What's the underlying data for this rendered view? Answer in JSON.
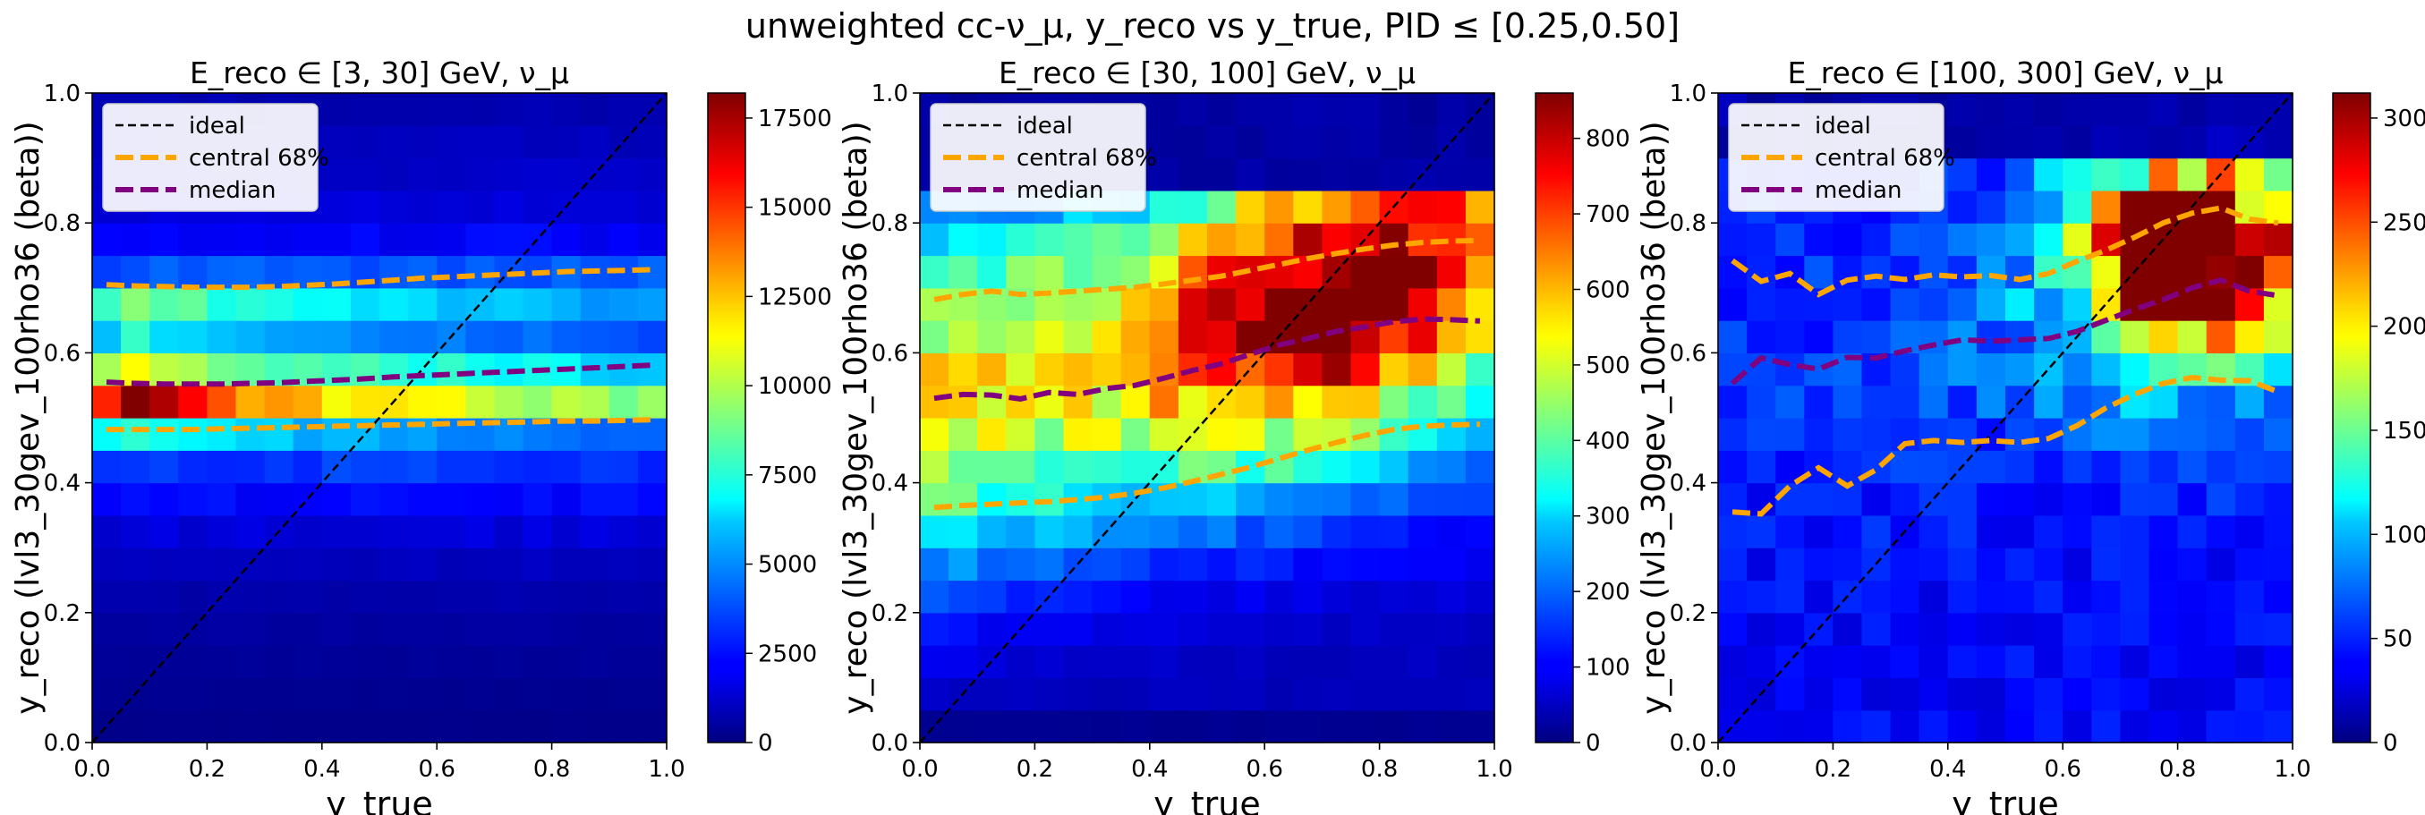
{
  "figure": {
    "suptitle": "unweighted cc-ν_μ, y_reco vs  y_true, PID ≤ [0.25,0.50]"
  },
  "chart_data": [
    {
      "type": "heatmap",
      "title": "E_reco ∈ [3, 30] GeV, ν_μ",
      "xlabel": "y_true",
      "ylabel": "y_reco (lvl3_30gev_100rho36 (beta))",
      "xlim": [
        0,
        1
      ],
      "ylim": [
        0,
        1
      ],
      "xticks": [
        "0.0",
        "0.2",
        "0.4",
        "0.6",
        "0.8",
        "1.0"
      ],
      "yticks": [
        "0.0",
        "0.2",
        "0.4",
        "0.6",
        "0.8",
        "1.0"
      ],
      "colorbar": {
        "min": 0,
        "max": 18200,
        "ticks": [
          0,
          2500,
          5000,
          7500,
          10000,
          12500,
          15000,
          17500
        ]
      },
      "legend": {
        "position": "top-left",
        "entries": [
          "ideal",
          "central 68%",
          "median"
        ]
      },
      "row_profile": [
        200,
        300,
        450,
        600,
        800,
        1100,
        1600,
        2300,
        3200,
        6500,
        14500,
        9500,
        5800,
        7800,
        3800,
        2200,
        1600,
        1300,
        1100,
        900
      ],
      "col_scale_top": [
        1.0,
        1.25,
        1.15,
        1.05,
        0.97,
        0.93,
        0.89,
        0.86,
        0.84,
        0.82,
        0.8,
        0.78,
        0.76,
        0.74,
        0.72,
        0.7,
        0.68,
        0.66,
        0.64,
        0.62
      ],
      "median": {
        "x": [
          0.025,
          0.075,
          0.125,
          0.175,
          0.225,
          0.275,
          0.325,
          0.375,
          0.425,
          0.475,
          0.525,
          0.575,
          0.625,
          0.675,
          0.725,
          0.775,
          0.825,
          0.875,
          0.925,
          0.975
        ],
        "y": [
          0.555,
          0.553,
          0.552,
          0.552,
          0.552,
          0.553,
          0.554,
          0.556,
          0.558,
          0.56,
          0.563,
          0.565,
          0.567,
          0.569,
          0.571,
          0.573,
          0.575,
          0.577,
          0.579,
          0.581
        ]
      },
      "central68_upper": {
        "y": [
          0.705,
          0.703,
          0.702,
          0.701,
          0.701,
          0.701,
          0.702,
          0.704,
          0.706,
          0.709,
          0.712,
          0.715,
          0.717,
          0.719,
          0.721,
          0.723,
          0.725,
          0.726,
          0.727,
          0.728
        ]
      },
      "central68_lower": {
        "y": [
          0.482,
          0.482,
          0.482,
          0.482,
          0.483,
          0.484,
          0.485,
          0.486,
          0.487,
          0.488,
          0.489,
          0.49,
          0.491,
          0.492,
          0.493,
          0.494,
          0.495,
          0.495,
          0.496,
          0.497
        ]
      }
    },
    {
      "type": "heatmap",
      "title": "E_reco ∈ [30, 100] GeV, ν_μ",
      "xlabel": "y_true",
      "ylabel": "y_reco (lvl3_30gev_100rho36 (beta))",
      "xlim": [
        0,
        1
      ],
      "ylim": [
        0,
        1
      ],
      "xticks": [
        "0.0",
        "0.2",
        "0.4",
        "0.6",
        "0.8",
        "1.0"
      ],
      "yticks": [
        "0.0",
        "0.2",
        "0.4",
        "0.6",
        "0.8",
        "1.0"
      ],
      "colorbar": {
        "min": 0,
        "max": 860,
        "ticks": [
          0,
          100,
          200,
          300,
          400,
          500,
          600,
          700,
          800
        ]
      },
      "legend": {
        "position": "top-left",
        "entries": [
          "ideal",
          "central 68%",
          "median"
        ]
      },
      "median": {
        "x": [
          0.025,
          0.075,
          0.125,
          0.175,
          0.225,
          0.275,
          0.325,
          0.375,
          0.425,
          0.475,
          0.525,
          0.575,
          0.625,
          0.675,
          0.725,
          0.775,
          0.825,
          0.875,
          0.925,
          0.975
        ],
        "y": [
          0.53,
          0.536,
          0.535,
          0.529,
          0.539,
          0.536,
          0.545,
          0.55,
          0.561,
          0.573,
          0.583,
          0.598,
          0.612,
          0.622,
          0.633,
          0.64,
          0.648,
          0.652,
          0.651,
          0.649
        ]
      },
      "central68_upper": {
        "y": [
          0.682,
          0.69,
          0.695,
          0.69,
          0.692,
          0.695,
          0.698,
          0.701,
          0.706,
          0.712,
          0.718,
          0.727,
          0.736,
          0.745,
          0.753,
          0.76,
          0.766,
          0.77,
          0.772,
          0.773
        ]
      },
      "central68_lower": {
        "y": [
          0.362,
          0.365,
          0.367,
          0.369,
          0.371,
          0.374,
          0.378,
          0.384,
          0.392,
          0.402,
          0.413,
          0.424,
          0.437,
          0.45,
          0.462,
          0.473,
          0.482,
          0.487,
          0.489,
          0.49
        ]
      }
    },
    {
      "type": "heatmap",
      "title": "E_reco ∈ [100, 300] GeV, ν_μ",
      "xlabel": "y_true",
      "ylabel": "y_reco (lvl3_30gev_100rho36 (beta))",
      "xlim": [
        0,
        1
      ],
      "ylim": [
        0,
        1
      ],
      "xticks": [
        "0.0",
        "0.2",
        "0.4",
        "0.6",
        "0.8",
        "1.0"
      ],
      "yticks": [
        "0.0",
        "0.2",
        "0.4",
        "0.6",
        "0.8",
        "1.0"
      ],
      "colorbar": {
        "min": 0,
        "max": 312,
        "ticks": [
          0,
          50,
          100,
          150,
          200,
          250,
          300
        ]
      },
      "legend": {
        "position": "top-left",
        "entries": [
          "ideal",
          "central 68%",
          "median"
        ]
      },
      "median": {
        "x": [
          0.025,
          0.075,
          0.125,
          0.175,
          0.225,
          0.275,
          0.325,
          0.375,
          0.425,
          0.475,
          0.525,
          0.575,
          0.625,
          0.675,
          0.725,
          0.775,
          0.825,
          0.875,
          0.925,
          0.975
        ],
        "y": [
          0.553,
          0.592,
          0.582,
          0.575,
          0.593,
          0.592,
          0.603,
          0.612,
          0.62,
          0.618,
          0.62,
          0.622,
          0.633,
          0.65,
          0.667,
          0.682,
          0.7,
          0.712,
          0.695,
          0.688
        ]
      },
      "central68_upper": {
        "y": [
          0.742,
          0.71,
          0.722,
          0.69,
          0.712,
          0.718,
          0.713,
          0.72,
          0.717,
          0.719,
          0.713,
          0.722,
          0.741,
          0.758,
          0.778,
          0.8,
          0.815,
          0.823,
          0.806,
          0.8
        ]
      },
      "central68_lower": {
        "y": [
          0.355,
          0.352,
          0.395,
          0.423,
          0.395,
          0.42,
          0.46,
          0.465,
          0.462,
          0.465,
          0.462,
          0.468,
          0.488,
          0.515,
          0.536,
          0.553,
          0.562,
          0.558,
          0.557,
          0.54
        ]
      }
    }
  ]
}
